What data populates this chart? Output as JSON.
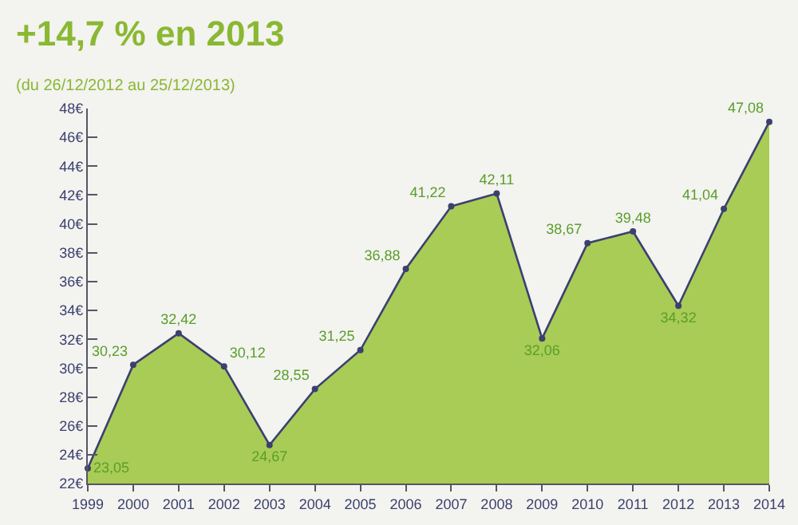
{
  "chart_data": {
    "type": "area",
    "title": "+14,7 % en 2013",
    "subtitle": "(du 26/12/2012 au 25/12/2013)",
    "categories": [
      "1999",
      "2000",
      "2001",
      "2002",
      "2003",
      "2004",
      "2005",
      "2006",
      "2007",
      "2008",
      "2009",
      "2010",
      "2011",
      "2012",
      "2013",
      "2014"
    ],
    "series": [
      {
        "color": "#a8cc55",
        "marker": "none",
        "values": [
          23.05,
          30.23,
          32.42,
          30.12,
          24.67,
          28.55,
          31.25,
          36.88,
          41.22,
          42.11,
          32.06,
          38.67,
          39.48,
          34.32,
          41.04,
          47.08
        ]
      },
      {
        "type": "line",
        "color": "#3c4070",
        "marker": "circle",
        "values": [
          23.05,
          30.23,
          32.42,
          30.12,
          24.67,
          28.55,
          31.25,
          36.88,
          41.22,
          42.11,
          32.06,
          38.67,
          39.48,
          34.32,
          41.04,
          47.08
        ],
        "value_labels": [
          "23,05",
          "30,23",
          "32,42",
          "30,12",
          "24,67",
          "28,55",
          "31,25",
          "36,88",
          "41,22",
          "42,11",
          "32,06",
          "38,67",
          "39,48",
          "34,32",
          "41,04",
          "47,08"
        ]
      }
    ],
    "ylim": [
      22,
      48
    ],
    "yticks": [
      {
        "value": 22,
        "label": "22€"
      },
      {
        "value": 24,
        "label": "24€"
      },
      {
        "value": 26,
        "label": "26€"
      },
      {
        "value": 28,
        "label": "28€"
      },
      {
        "value": 30,
        "label": "30€"
      },
      {
        "value": 32,
        "label": "32€"
      },
      {
        "value": 34,
        "label": "34€"
      },
      {
        "value": 36,
        "label": "36€"
      },
      {
        "value": 38,
        "label": "38€"
      },
      {
        "value": 40,
        "label": "40€"
      },
      {
        "value": 42,
        "label": "42€"
      },
      {
        "value": 44,
        "label": "44€"
      },
      {
        "value": 46,
        "label": "46€"
      },
      {
        "value": 48,
        "label": "48€"
      }
    ],
    "grid": false
  }
}
